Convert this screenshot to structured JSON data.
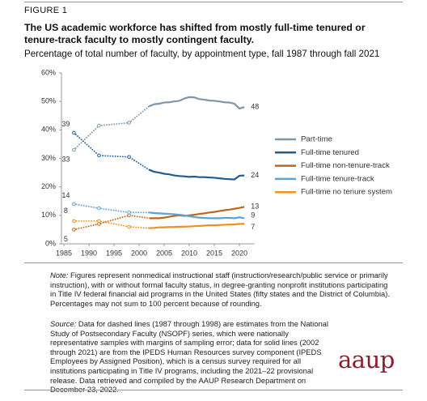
{
  "figure_label": "FIGURE 1",
  "logo": "aaup",
  "notes": {
    "note_label": "Note:",
    "note": "Figures represent nonmedical instructional staff (instruction/research/public service or primarily instruction), with or without formal faculty status, in degree-granting nonprofit institutions participating in Title IV federal financial aid programs in the United States (fifty states and the District of Columbia). Percentages may not sum to 100 percent because of rounding.",
    "source_label": "Source:",
    "source": "Data for dashed lines (1987 through 1998) are estimates from the National Study of Postsecondary Faculty (NSOPF) series, which were nationally representative samples with margins of sampling error; data for solid lines (2002 through 2021) are from the IPEDS Human Resources survey component (IPEDS Employees by Assigned Position), which is a census survey required for all institutions participating in Title IV programs, including the 2021–22 provisional release. Data retrieved and compiled by the AAUP Research Department on December 23, 2022."
  },
  "chart_data": {
    "type": "line",
    "title": "The US academic workforce has shifted from mostly full-time tenured or tenure-track faculty to mostly contingent faculty.",
    "subtitle": "Percentage of total number of faculty, by appointment type, fall 1987 through fall 2021",
    "x": [
      1987,
      1992,
      1998,
      2002,
      2003,
      2004,
      2005,
      2006,
      2007,
      2008,
      2009,
      2010,
      2011,
      2012,
      2013,
      2014,
      2015,
      2016,
      2017,
      2018,
      2019,
      2020,
      2021
    ],
    "dashed_until": 2002,
    "series": [
      {
        "name": "Part-time",
        "color": "#8095a8",
        "values": [
          33,
          41.5,
          42.5,
          48.3,
          49,
          49.2,
          49.6,
          49.7,
          50,
          50.2,
          51,
          51.5,
          51.4,
          50.8,
          50.6,
          50.3,
          50.2,
          50,
          49.7,
          49.6,
          49.2,
          47.5,
          48
        ]
      },
      {
        "name": "Full-time tenured",
        "color": "#1f5c93",
        "values": [
          39,
          31,
          30.5,
          26,
          25.3,
          25,
          24.6,
          24.4,
          24,
          23.8,
          23.7,
          23.5,
          23.6,
          23.4,
          23.4,
          23.3,
          23.2,
          23,
          22.8,
          22.7,
          22.6,
          23.9,
          24
        ]
      },
      {
        "name": "Full-time non-tenure-track",
        "color": "#c0651c",
        "values": [
          5,
          7,
          10,
          9,
          9,
          9,
          9.2,
          9.5,
          9.8,
          10,
          9.8,
          10,
          10.2,
          10.5,
          10.7,
          11,
          11.2,
          11.5,
          11.8,
          12,
          12.3,
          12.6,
          13
        ]
      },
      {
        "name": "Full-time tenure-track",
        "color": "#5aa3d6",
        "values": [
          14,
          12.5,
          11,
          11,
          10.8,
          10.7,
          10.6,
          10.5,
          10.4,
          10.2,
          10,
          9.7,
          9.4,
          9.2,
          9.1,
          9,
          9,
          9,
          9.1,
          9.1,
          9,
          9.3,
          9
        ]
      },
      {
        "name": "Full-time no tenure system",
        "color": "#f0901f",
        "values": [
          8,
          8,
          6,
          5.5,
          5.6,
          5.8,
          5.8,
          5.9,
          5.9,
          6,
          6,
          6.1,
          6.2,
          6.3,
          6.4,
          6.5,
          6.5,
          6.6,
          6.7,
          6.8,
          6.8,
          7,
          7
        ]
      }
    ],
    "xlim": [
      1985,
      2023
    ],
    "xticks": [
      1985,
      1990,
      1995,
      2000,
      2005,
      2010,
      2015,
      2020
    ],
    "ylim": [
      0,
      60
    ],
    "yticks": [
      {
        "value": 0,
        "label": "0%"
      },
      {
        "value": 10,
        "label": "10%"
      },
      {
        "value": 20,
        "label": "20%"
      },
      {
        "value": 30,
        "label": "30%"
      },
      {
        "value": 40,
        "label": "40%"
      },
      {
        "value": 50,
        "label": "50%"
      },
      {
        "value": 60,
        "label": "60%"
      }
    ],
    "grid": false
  }
}
